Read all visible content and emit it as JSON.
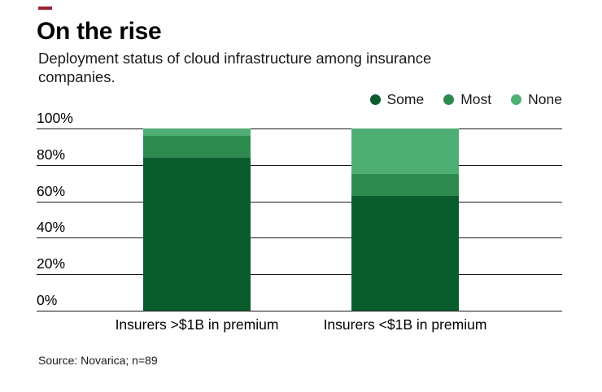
{
  "brand": {
    "accent_color": "#9d2235"
  },
  "chart_data": {
    "type": "bar",
    "stacked": true,
    "title": "On the rise",
    "subtitle": "Deployment status of cloud infrastructure among insurance companies.",
    "categories": [
      "Insurers >$1B in premium",
      "Insurers <$1B in premium"
    ],
    "series": [
      {
        "name": "Some",
        "color": "#0a5c2c",
        "values": [
          84,
          63
        ]
      },
      {
        "name": "Most",
        "color": "#2e8b50",
        "values": [
          12,
          12
        ]
      },
      {
        "name": "None",
        "color": "#4fae74",
        "values": [
          4,
          25
        ]
      }
    ],
    "xlabel": "",
    "ylabel": "",
    "ylim": [
      0,
      100
    ],
    "yticks": [
      0,
      20,
      40,
      60,
      80,
      100
    ],
    "ytick_format": "{v}%",
    "grid": true,
    "legend_position": "top-right",
    "source": "Source: Novarica; n=89"
  }
}
